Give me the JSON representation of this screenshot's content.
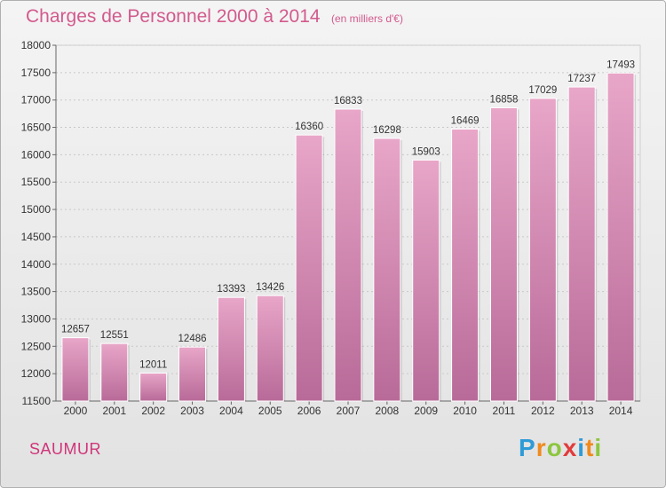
{
  "title": "Charges de Personnel 2000 à 2014",
  "subtitle": "(en milliers d'€)",
  "city": "SAUMUR",
  "logo": {
    "letters": [
      "P",
      "r",
      "o",
      "x",
      "i",
      "t",
      "i"
    ],
    "colors": [
      "#2f9bd6",
      "#f08a1c",
      "#8cc63f",
      "#e23b3b",
      "#2f9bd6",
      "#f08a1c",
      "#8cc63f"
    ]
  },
  "colors": {
    "bar_top": "#e8a6c8",
    "bar_bottom": "#b86a98",
    "text_accent": "#d25a8d"
  },
  "chart_data": {
    "type": "bar",
    "title": "Charges de Personnel 2000 à 2014",
    "xlabel": "",
    "ylabel": "",
    "categories": [
      "2000",
      "2001",
      "2002",
      "2003",
      "2004",
      "2005",
      "2006",
      "2007",
      "2008",
      "2009",
      "2010",
      "2011",
      "2012",
      "2013",
      "2014"
    ],
    "values": [
      12657,
      12551,
      12011,
      12486,
      13393,
      13426,
      16360,
      16833,
      16298,
      15903,
      16469,
      16858,
      17029,
      17237,
      17493
    ],
    "ylim": [
      11500,
      18000
    ],
    "yticks": [
      11500,
      12000,
      12500,
      13000,
      13500,
      14000,
      14500,
      15000,
      15500,
      16000,
      16500,
      17000,
      17500,
      18000
    ],
    "grid": true,
    "legend": "none"
  }
}
